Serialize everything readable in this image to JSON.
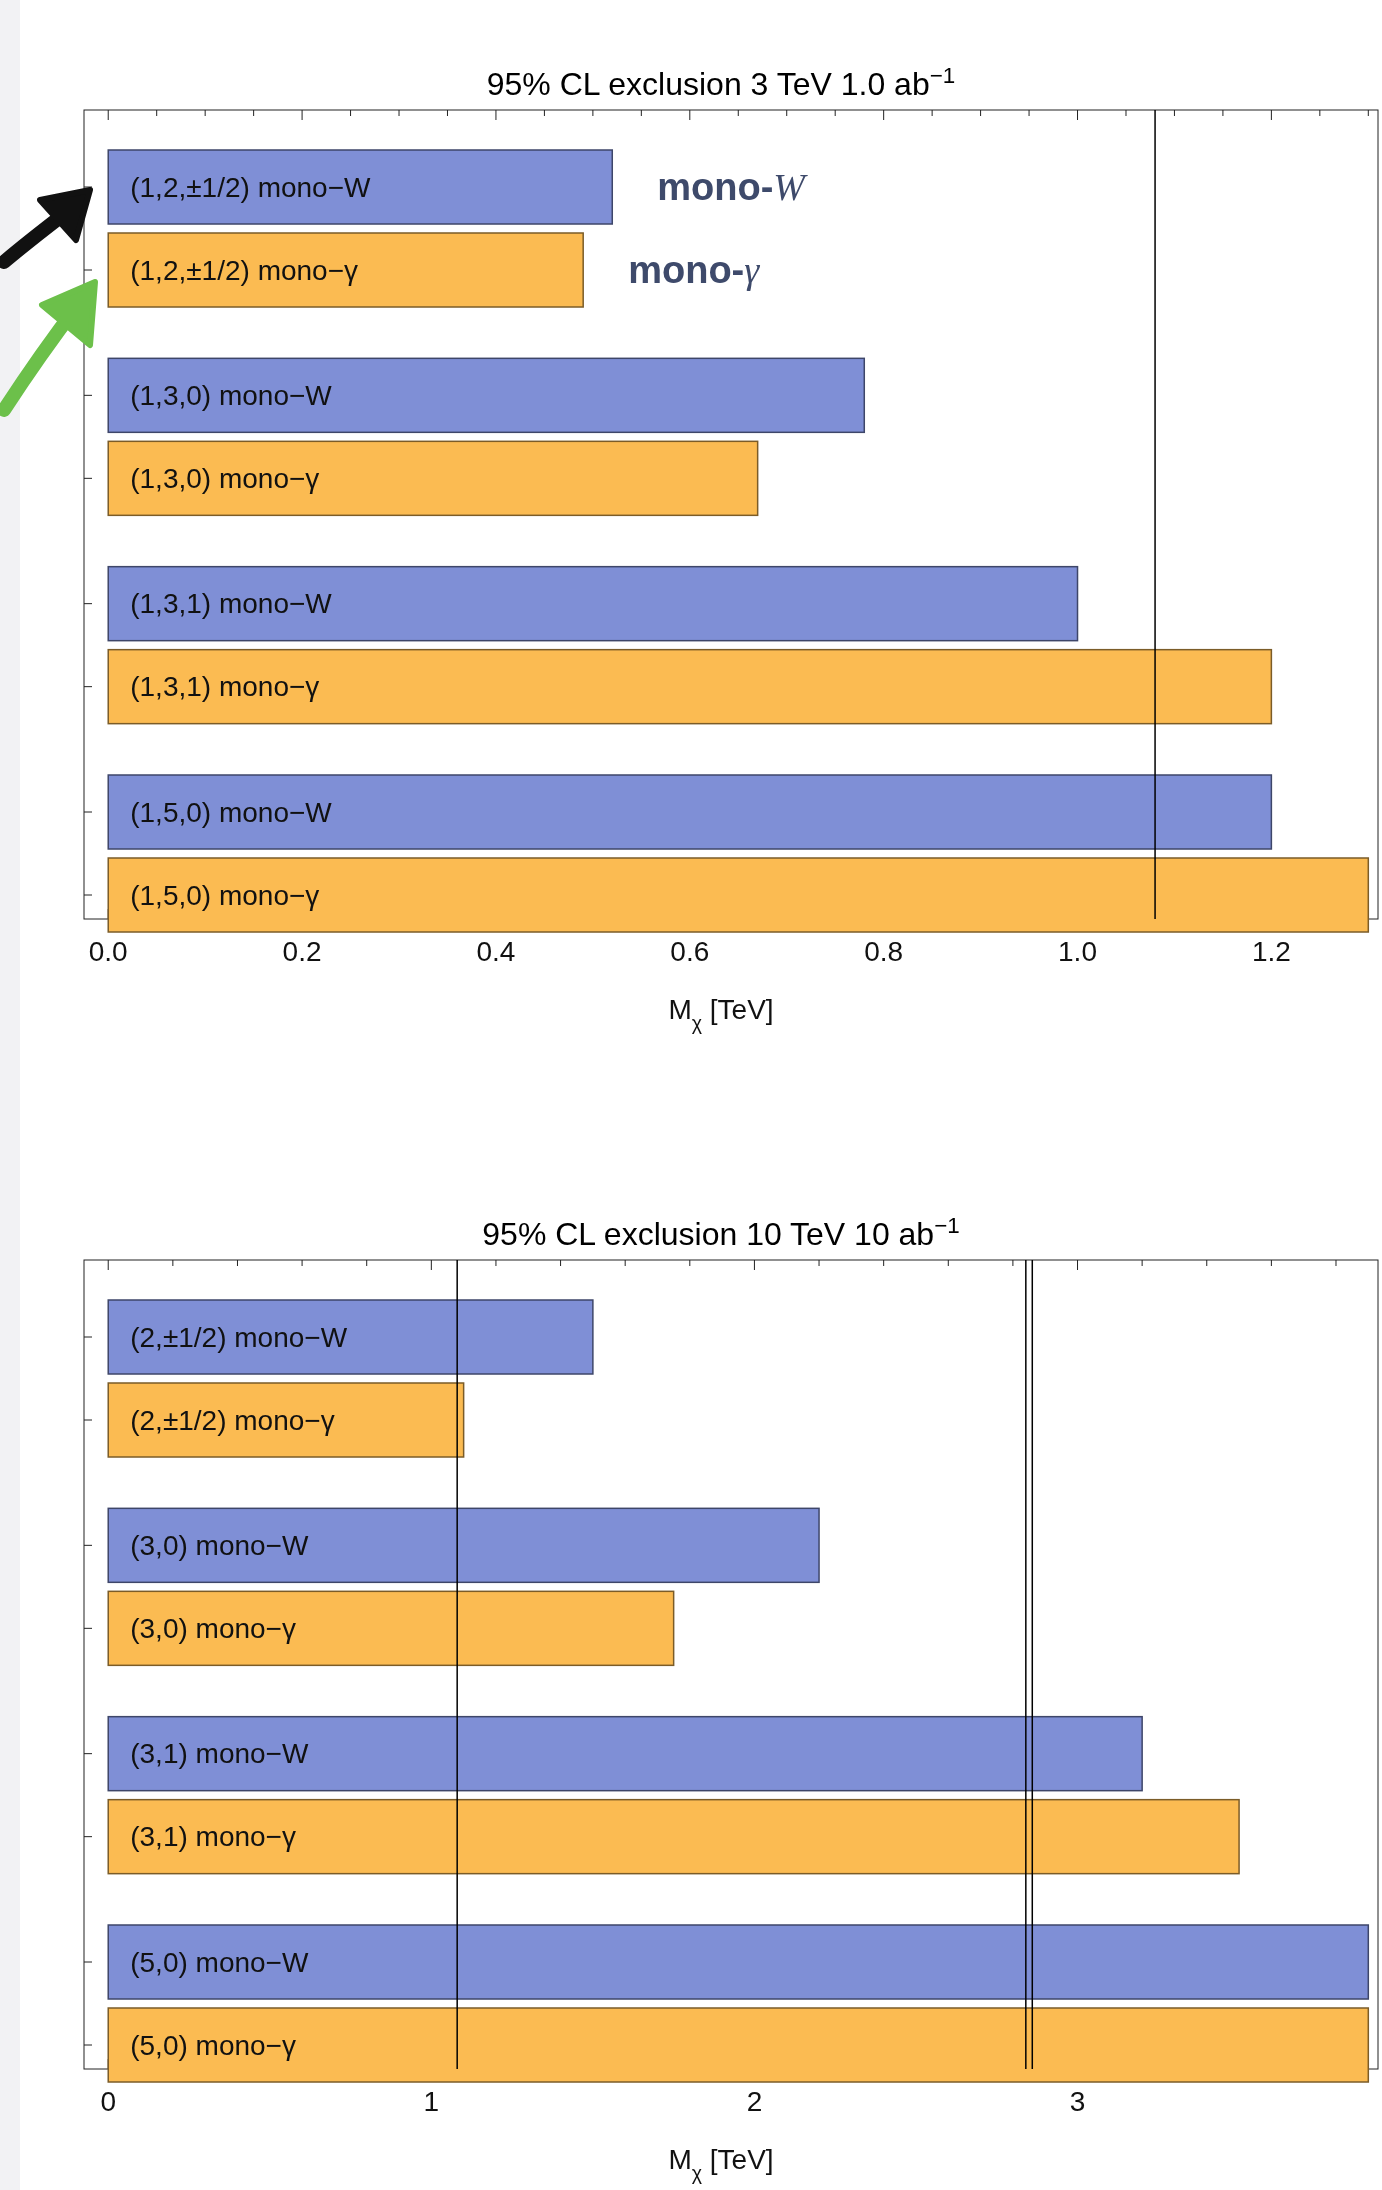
{
  "chart_data": [
    {
      "type": "bar",
      "orientation": "horizontal",
      "title": "95% CL exclusion 3 TeV  1.0 ab$^{−1}$",
      "xlabel": "M$_{χ}$ [TeV]",
      "categories": [
        "(1,2,±1/2) mono−W",
        "(1,2,±1/2) mono−γ",
        "(1,3,0) mono−W",
        "(1,3,0) mono−γ",
        "(1,3,1) mono−W",
        "(1,3,1) mono−γ",
        "(1,5,0) mono−W",
        "(1,5,0) mono−γ"
      ],
      "values": [
        0.52,
        0.49,
        0.78,
        0.67,
        1.0,
        1.2,
        1.2,
        1.3
      ],
      "colors": [
        "#7f8fd6",
        "#fbbb52",
        "#7f8fd6",
        "#fbbb52",
        "#7f8fd6",
        "#fbbb52",
        "#7f8fd6",
        "#fbbb52"
      ],
      "xlim": [
        -0.025,
        1.31
      ],
      "xticks": [
        {
          "value": 0,
          "label": "0.0"
        },
        {
          "value": 0.05,
          "label": null
        },
        {
          "value": 0.1,
          "label": null
        },
        {
          "value": 0.15,
          "label": null
        },
        0.2,
        {
          "value": 0.25,
          "label": null
        },
        {
          "value": 0.3,
          "label": null
        },
        {
          "value": 0.35,
          "label": null
        },
        0.4,
        {
          "value": 0.45,
          "label": null
        },
        {
          "value": 0.5,
          "label": null
        },
        {
          "value": 0.55,
          "label": null
        },
        0.6,
        {
          "value": 0.65,
          "label": null
        },
        {
          "value": 0.7,
          "label": null
        },
        {
          "value": 0.75,
          "label": null
        },
        0.8,
        {
          "value": 0.85,
          "label": null
        },
        {
          "value": 0.9,
          "label": null
        },
        {
          "value": 0.95,
          "label": null
        },
        {
          "value": 1,
          "label": "1.0"
        },
        {
          "value": 1.05,
          "label": null
        },
        {
          "value": 1.1,
          "label": null
        },
        {
          "value": 1.15,
          "label": null
        },
        1.2,
        {
          "value": 1.25,
          "label": null
        },
        {
          "value": 1.3,
          "label": null
        }
      ],
      "ref_lines": [
        {
          "axis": "x",
          "value": 1.08,
          "color": "#000000"
        }
      ],
      "annotations": [
        "mono-W",
        "mono-γ"
      ],
      "tick_labels": "x"
    },
    {
      "type": "bar",
      "orientation": "horizontal",
      "title": "95% CL exclusion 10 TeV  10 ab$^{−1}$",
      "xlabel": "M$_{χ}$ [TeV]",
      "categories": [
        "(2,±1/2) mono−W",
        "(2,±1/2) mono−γ",
        "(3,0) mono−W",
        "(3,0) mono−γ",
        "(3,1) mono−W",
        "(3,1) mono−γ",
        "(5,0) mono−W",
        "(5,0) mono−γ"
      ],
      "values": [
        1.5,
        1.1,
        2.2,
        1.75,
        3.2,
        3.5,
        3.9,
        3.9
      ],
      "colors": [
        "#7f8fd6",
        "#fbbb52",
        "#7f8fd6",
        "#fbbb52",
        "#7f8fd6",
        "#fbbb52",
        "#7f8fd6",
        "#fbbb52"
      ],
      "xlim": [
        -0.075,
        3.93
      ],
      "xticks": [
        0,
        {
          "value": 0.2,
          "label": null
        },
        {
          "value": 0.4,
          "label": null
        },
        {
          "value": 0.6,
          "label": null
        },
        {
          "value": 0.8,
          "label": null
        },
        1,
        {
          "value": 1.2,
          "label": null
        },
        {
          "value": 1.4,
          "label": null
        },
        {
          "value": 1.6,
          "label": null
        },
        {
          "value": 1.8,
          "label": null
        },
        2,
        {
          "value": 2.2,
          "label": null
        },
        {
          "value": 2.4,
          "label": null
        },
        {
          "value": 2.6,
          "label": null
        },
        {
          "value": 2.8,
          "label": null
        },
        3,
        {
          "value": 3.2,
          "label": null
        },
        {
          "value": 3.4,
          "label": null
        },
        {
          "value": 3.6,
          "label": null
        },
        {
          "value": 3.8,
          "label": null
        }
      ],
      "ref_lines": [
        {
          "axis": "x",
          "value": 1.08,
          "color": "#000000"
        },
        {
          "axis": "x",
          "value": 2.86,
          "color": "#000000"
        },
        {
          "axis": "x",
          "value": 2.84,
          "color": "#000000"
        }
      ],
      "tick_labels": "x"
    }
  ]
}
